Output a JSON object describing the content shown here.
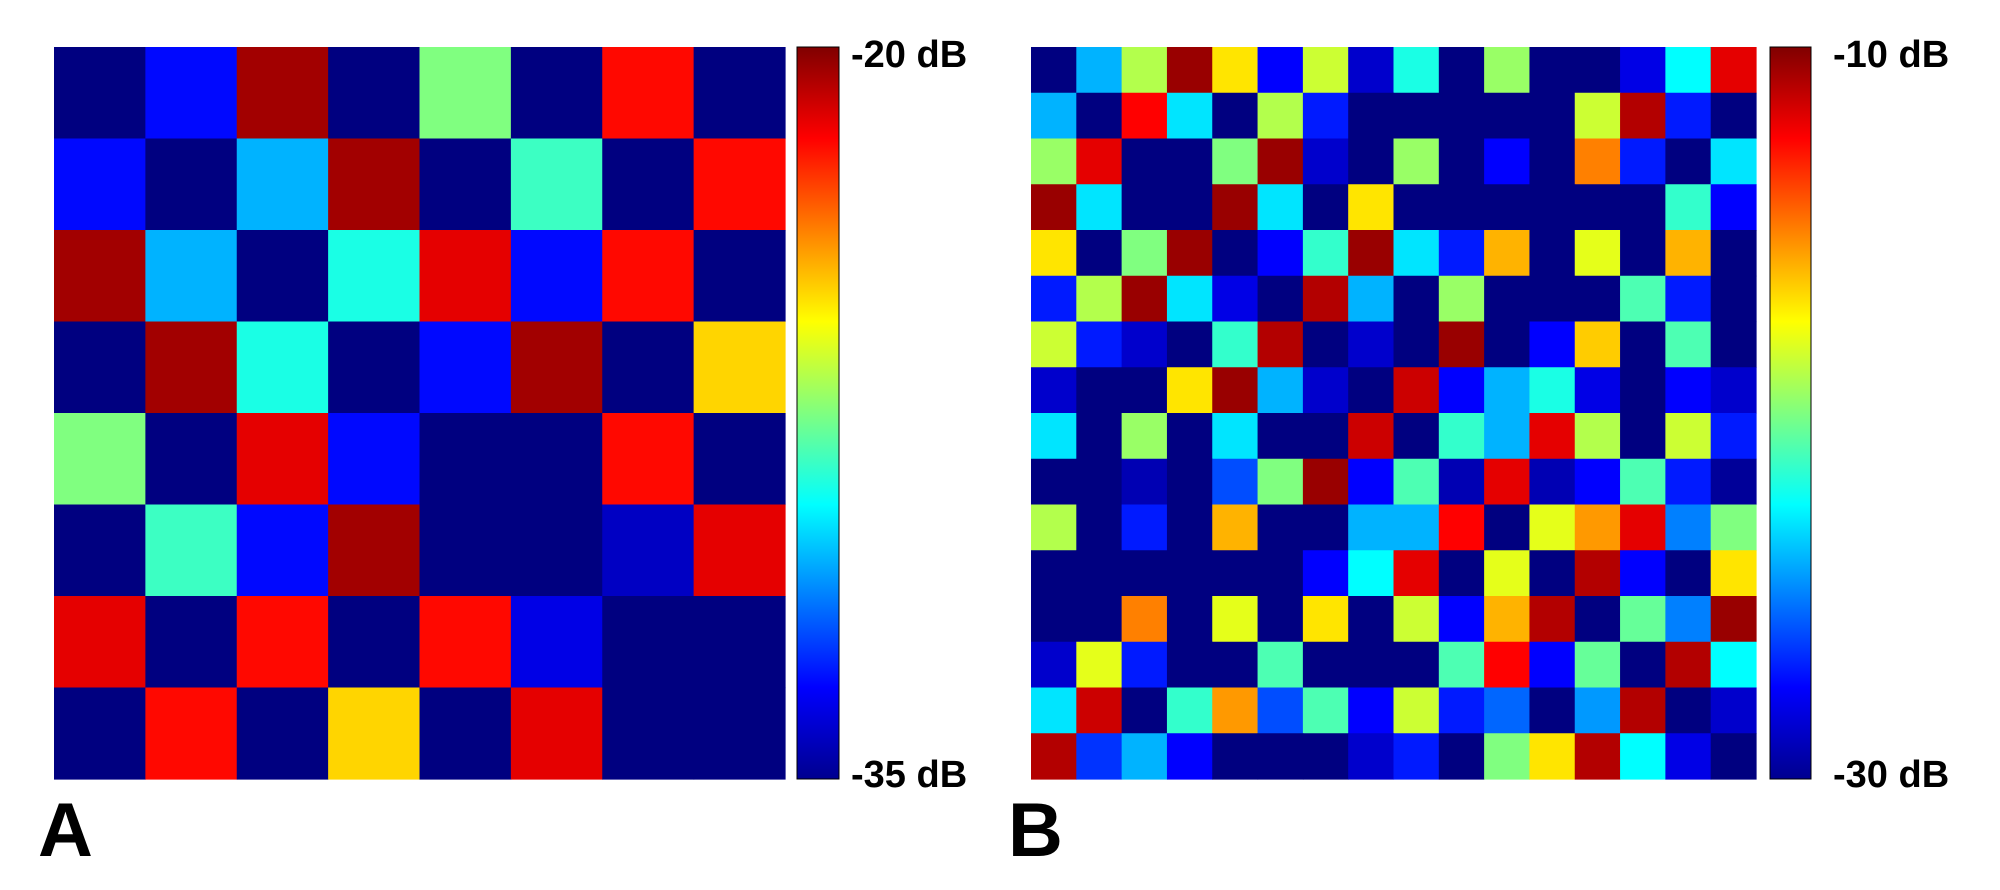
{
  "chart_data": [
    {
      "type": "heatmap",
      "panel_label": "A",
      "colormap": "jet",
      "zlim": [
        -35,
        -20
      ],
      "zticks": [
        {
          "value": -35,
          "label": "-35 dB"
        },
        {
          "value": -20,
          "label": "-20 dB"
        }
      ],
      "values": [
        [
          -35,
          -33,
          -20.5,
          -35,
          -27.5,
          -35,
          -22,
          -35
        ],
        [
          -33,
          -35,
          -30.5,
          -20.5,
          -35,
          -28.5,
          -35,
          -22
        ],
        [
          -20.5,
          -30.5,
          -35,
          -29,
          -21.5,
          -33,
          -22,
          -35
        ],
        [
          -35,
          -20.5,
          -29,
          -35,
          -33,
          -20.5,
          -35,
          -25
        ],
        [
          -27.5,
          -35,
          -21.5,
          -33,
          -35,
          -35,
          -22,
          -35
        ],
        [
          -35,
          -28.5,
          -33,
          -20.5,
          -35,
          -35,
          -34,
          -21.5
        ],
        [
          -21.5,
          -35,
          -22,
          -35,
          -22,
          -33.5,
          -35,
          -35
        ],
        [
          -35,
          -22,
          -35,
          -25,
          -35,
          -21.5,
          -35,
          -35
        ]
      ]
    },
    {
      "type": "heatmap",
      "panel_label": "B",
      "colormap": "jet",
      "zlim": [
        -30,
        -10
      ],
      "zticks": [
        {
          "value": -30,
          "label": "-30 dB"
        },
        {
          "value": -10,
          "label": "-10 dB"
        }
      ],
      "values": [
        [
          -30,
          -24,
          -19,
          -10.5,
          -17,
          -27.5,
          -18.5,
          -28.5,
          -22,
          -30,
          -19.5,
          -30,
          -30,
          -28,
          -22.5,
          -12
        ],
        [
          -24,
          -30,
          -12.5,
          -23,
          -30,
          -19,
          -27,
          -30,
          -30,
          -30,
          -30,
          -30,
          -18.5,
          -11,
          -27,
          -30
        ],
        [
          -19.5,
          -12,
          -30,
          -30,
          -20,
          -10.5,
          -28.5,
          -30,
          -19.5,
          -30,
          -27.5,
          -30,
          -15,
          -27,
          -30,
          -23
        ],
        [
          -10.5,
          -23,
          -30,
          -30,
          -10.5,
          -23,
          -30,
          -17,
          -30,
          -30,
          -30,
          -30,
          -30,
          -30,
          -21.5,
          -27.5
        ],
        [
          -17,
          -30,
          -20,
          -10.5,
          -30,
          -27.5,
          -21.5,
          -10.5,
          -23,
          -27,
          -16,
          -30,
          -18,
          -30,
          -16,
          -30
        ],
        [
          -27,
          -19,
          -10.5,
          -23,
          -28,
          -30,
          -11,
          -24,
          -30,
          -19.5,
          -30,
          -30,
          -30,
          -21,
          -27,
          -30
        ],
        [
          -18.5,
          -27,
          -28.5,
          -30,
          -21.5,
          -11,
          -30,
          -28.5,
          -30,
          -10.5,
          -30,
          -27.5,
          -16.5,
          -30,
          -21,
          -30
        ],
        [
          -28.5,
          -30,
          -30,
          -17,
          -10.5,
          -24,
          -28.5,
          -30,
          -11.5,
          -27.5,
          -24,
          -22,
          -28,
          -30,
          -27.5,
          -28.5
        ],
        [
          -23,
          -30,
          -19.5,
          -30,
          -23,
          -30,
          -30,
          -11.5,
          -30,
          -21.5,
          -24,
          -12,
          -19,
          -30,
          -18.5,
          -27
        ],
        [
          -30,
          -30,
          -29,
          -30,
          -26,
          -20,
          -10.5,
          -27.5,
          -21,
          -29,
          -12,
          -29,
          -27.5,
          -21,
          -27,
          -29.5
        ],
        [
          -19,
          -30,
          -27,
          -30,
          -16,
          -30,
          -30,
          -24,
          -24,
          -12.5,
          -30,
          -18,
          -15.5,
          -12,
          -25,
          -20
        ],
        [
          -30,
          -30,
          -30,
          -30,
          -30,
          -30,
          -27.5,
          -22.5,
          -12,
          -30,
          -18,
          -30,
          -11,
          -27.5,
          -30,
          -17
        ],
        [
          -30,
          -30,
          -15,
          -30,
          -18,
          -30,
          -17,
          -30,
          -18.5,
          -27.5,
          -16,
          -11,
          -30,
          -20.5,
          -25,
          -10.5
        ],
        [
          -28.5,
          -18,
          -27,
          -30,
          -30,
          -21,
          -30,
          -30,
          -30,
          -21,
          -12.5,
          -27.5,
          -20.5,
          -30,
          -11,
          -22.5
        ],
        [
          -23,
          -11.5,
          -30,
          -21.5,
          -15.5,
          -26,
          -21,
          -27.5,
          -18.5,
          -27,
          -25.5,
          -30,
          -24.5,
          -11,
          -30,
          -28.5
        ],
        [
          -11,
          -26.5,
          -24,
          -27.5,
          -30,
          -30,
          -30,
          -28.5,
          -27,
          -30,
          -20,
          -17,
          -11,
          -22.5,
          -28,
          -30
        ]
      ]
    }
  ]
}
